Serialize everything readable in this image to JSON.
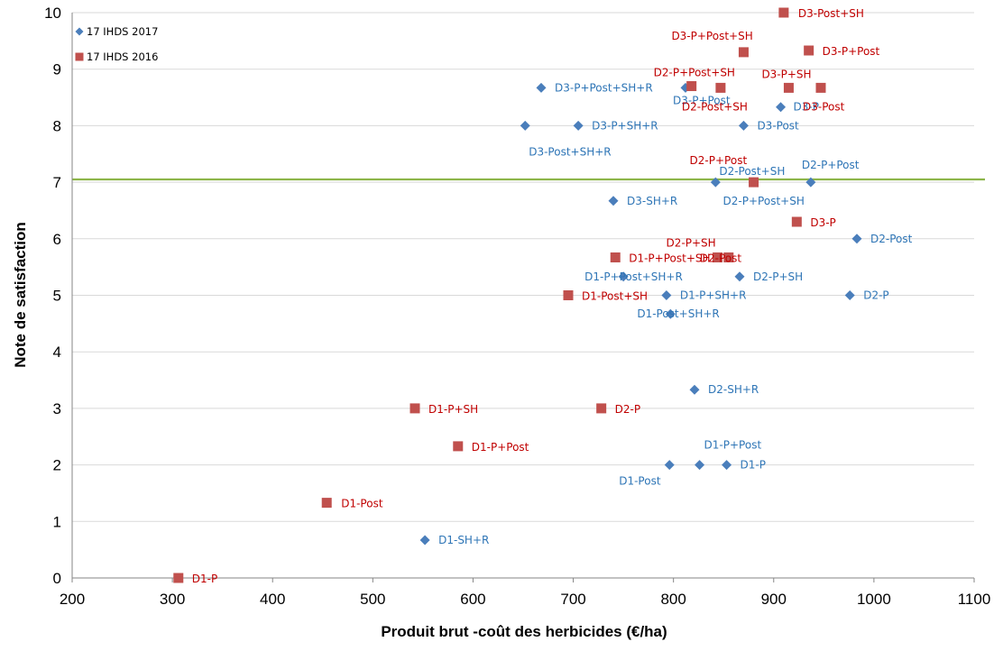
{
  "chart_data": {
    "type": "scatter",
    "title": "",
    "xlabel": "Produit brut -coût des herbicides (€/ha)",
    "ylabel": "Note de satisfaction",
    "xlim": [
      200,
      1100
    ],
    "ylim": [
      0,
      10
    ],
    "x_ticks": [
      "200",
      "300",
      "400",
      "500",
      "600",
      "700",
      "800",
      "900",
      "1000",
      "1100"
    ],
    "y_ticks": [
      "0",
      "1",
      "2",
      "3",
      "4",
      "5",
      "6",
      "7",
      "8",
      "9",
      "10"
    ],
    "grid": "horizontal",
    "legend_position": "top-left",
    "reference_line": {
      "y": 7.05,
      "color": "#8DB54A"
    },
    "series": [
      {
        "name": "17 IHDS 2017",
        "marker": "diamond",
        "color": "#4A7EBB",
        "label_color": "#2E75B6",
        "points": [
          {
            "label": "D3-P+Post+SH+R",
            "x": 668,
            "y": 8.67
          },
          {
            "label": "D3-P+Post",
            "x": 812,
            "y": 8.67
          },
          {
            "label": "D3-P",
            "x": 907,
            "y": 8.33
          },
          {
            "label": "D3-Post+SH+R",
            "x": 652,
            "y": 8.0
          },
          {
            "label": "D3-P+SH+R",
            "x": 705,
            "y": 8.0
          },
          {
            "label": "D3-Post",
            "x": 870,
            "y": 8.0
          },
          {
            "label": "D2-Post+SH",
            "x": 842,
            "y": 7.0
          },
          {
            "label": "D2-P+Post+SH",
            "x": 880,
            "y": 7.0
          },
          {
            "label": "D2-P+Post",
            "x": 937,
            "y": 7.0
          },
          {
            "label": "D3-SH+R",
            "x": 740,
            "y": 6.67
          },
          {
            "label": "D2-Post",
            "x": 983,
            "y": 6.0
          },
          {
            "label": "D1-P+Post+SH+R",
            "x": 750,
            "y": 5.33
          },
          {
            "label": "D2-P+SH",
            "x": 866,
            "y": 5.33
          },
          {
            "label": "D1-P+SH+R",
            "x": 793,
            "y": 5.0
          },
          {
            "label": "D2-P",
            "x": 976,
            "y": 5.0
          },
          {
            "label": "D1-Post+SH+R",
            "x": 797,
            "y": 4.67
          },
          {
            "label": "D2-SH+R",
            "x": 821,
            "y": 3.33
          },
          {
            "label": "D1-Post",
            "x": 796,
            "y": 2.0
          },
          {
            "label": "D1-P+Post",
            "x": 826,
            "y": 2.0
          },
          {
            "label": "D1-P",
            "x": 853,
            "y": 2.0
          },
          {
            "label": "D1-SH+R",
            "x": 552,
            "y": 0.67
          }
        ]
      },
      {
        "name": "17 IHDS 2016",
        "marker": "square",
        "color": "#C0504D",
        "label_color": "#C00000",
        "points": [
          {
            "label": "D3-Post+SH",
            "x": 910,
            "y": 10.0
          },
          {
            "label": "D3-P+Post+SH",
            "x": 870,
            "y": 9.3
          },
          {
            "label": "D3-P+Post",
            "x": 935,
            "y": 9.33
          },
          {
            "label": "D2-P+Post+SH",
            "x": 818,
            "y": 8.7
          },
          {
            "label": "D2-Post+SH",
            "x": 847,
            "y": 8.67
          },
          {
            "label": "D3-P+SH",
            "x": 915,
            "y": 8.67
          },
          {
            "label": "D3-Post",
            "x": 947,
            "y": 8.67
          },
          {
            "label": "D2-P+Post",
            "x": 880,
            "y": 7.0
          },
          {
            "label": "D3-P",
            "x": 923,
            "y": 6.3
          },
          {
            "label": "D1-P+Post+SH",
            "x": 742,
            "y": 5.67
          },
          {
            "label": "D2-P+SH",
            "x": 844,
            "y": 5.67
          },
          {
            "label": "D2-Post",
            "x": 855,
            "y": 5.67
          },
          {
            "label": "D1-Post+SH",
            "x": 695,
            "y": 5.0
          },
          {
            "label": "D1-P+SH",
            "x": 542,
            "y": 3.0
          },
          {
            "label": "D2-P",
            "x": 728,
            "y": 3.0
          },
          {
            "label": "D1-P+Post",
            "x": 585,
            "y": 2.33
          },
          {
            "label": "D1-Post",
            "x": 454,
            "y": 1.33
          },
          {
            "label": "D1-P",
            "x": 306,
            "y": 0.0
          }
        ]
      }
    ]
  }
}
